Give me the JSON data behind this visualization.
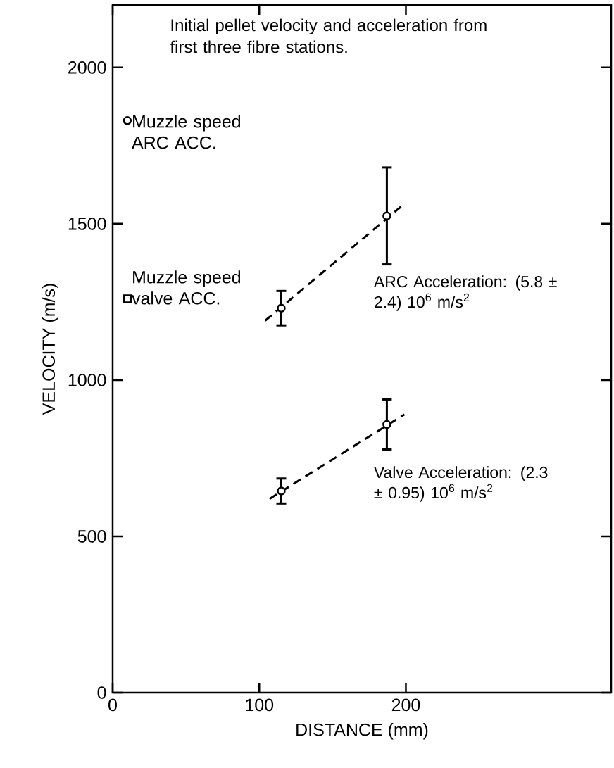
{
  "chart_data": {
    "type": "scatter",
    "title": "Initial pellet velocity and acceleration from first three fibre stations.",
    "xlabel": "DISTANCE (mm)",
    "ylabel": "VELOCITY (m/s)",
    "xlim": [
      0,
      340
    ],
    "ylim": [
      0,
      2200
    ],
    "xticks": [
      0,
      100,
      200
    ],
    "yticks": [
      0,
      500,
      1000,
      1500,
      2000
    ],
    "grid": false,
    "legend": false,
    "series": [
      {
        "color": "#000000",
        "marker": "circle",
        "x": [
          115,
          187
        ],
        "values": [
          1230,
          1525
        ],
        "errors": [
          55,
          155
        ]
      },
      {
        "type": "line",
        "color": "#000000",
        "marker": "none",
        "line_style": "dashed",
        "x": [
          104,
          198
        ],
        "values": [
          1190,
          1560
        ]
      },
      {
        "color": "#000000",
        "marker": "circle",
        "x": [
          115,
          187
        ],
        "values": [
          645,
          858
        ],
        "errors": [
          40,
          80
        ]
      },
      {
        "type": "line",
        "color": "#000000",
        "marker": "none",
        "line_style": "dashed",
        "x": [
          107,
          199
        ],
        "values": [
          620,
          890
        ]
      },
      {
        "name": "Muzzle speed ARC ACC.",
        "color": "#000000",
        "marker": "circle",
        "x": [
          10
        ],
        "values": [
          1830
        ]
      },
      {
        "name": "Muzzle speed valve ACC.",
        "color": "#000000",
        "marker": "square",
        "x": [
          10
        ],
        "values": [
          1260
        ]
      }
    ],
    "annotations": [
      "ARC Acceleration: (5.8 ± 2.4) 10$^{6}$ m/s$^{2}$",
      "Valve Acceleration: (2.3 ± 0.95) 10$^{6}$ m/s$^{2}$"
    ]
  }
}
